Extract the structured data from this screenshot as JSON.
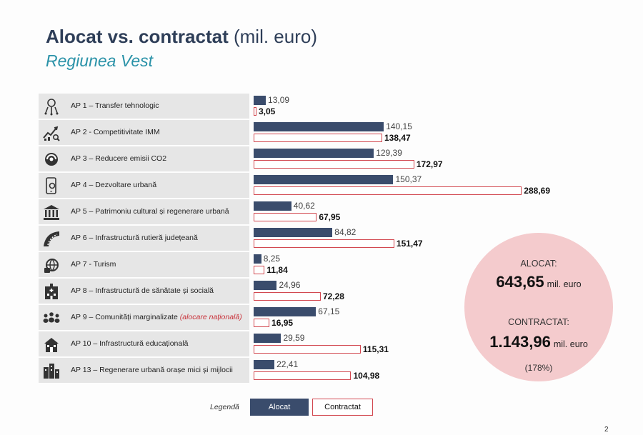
{
  "header": {
    "title_bold": "Alocat vs. contractat",
    "title_unit": "(mil. euro)",
    "subtitle": "Regiunea Vest"
  },
  "chart_data": {
    "type": "bar",
    "orientation": "horizontal",
    "categories": [
      "AP 1 – Transfer tehnologic",
      "AP 2 - Competitivitate IMM",
      "AP 3 – Reducere emisii CO2",
      "AP 4 – Dezvoltare urbană",
      "AP 5 – Patrimoniu cultural și regenerare urbană",
      "AP 6 – Infrastructură rutieră județeană",
      "AP 7 - Turism",
      "AP 8 – Infrastructură de sănătate și socială",
      "AP 9 – Comunități marginalizate",
      "AP 10 – Infrastructură educațională",
      "AP 13 – Regenerare urbană orașe mici și mijlocii"
    ],
    "category_notes": [
      "",
      "",
      "",
      "",
      "",
      "",
      "",
      "",
      "(alocare națională)",
      "",
      ""
    ],
    "series": [
      {
        "name": "Alocat",
        "color": "#3a4c6c",
        "values": [
          13.09,
          140.15,
          129.39,
          150.37,
          40.62,
          84.82,
          8.25,
          24.96,
          67.15,
          29.59,
          22.41
        ],
        "labels": [
          "13,09",
          "140,15",
          "129,39",
          "150,37",
          "40,62",
          "84,82",
          "8,25",
          "24,96",
          "67,15",
          "29,59",
          "22,41"
        ]
      },
      {
        "name": "Contractat",
        "color": "#d24850",
        "values": [
          3.05,
          138.47,
          172.97,
          288.69,
          67.95,
          151.47,
          11.84,
          72.28,
          16.95,
          115.31,
          104.98
        ],
        "labels": [
          "3,05",
          "138,47",
          "172,97",
          "288,69",
          "67,95",
          "151,47",
          "11,84",
          "72,28",
          "16,95",
          "115,31",
          "104,98"
        ]
      }
    ],
    "icons": [
      "tech-transfer-icon",
      "growth-chart-icon",
      "co2-reduction-icon",
      "smart-device-icon",
      "heritage-building-icon",
      "road-infrastructure-icon",
      "tourism-icon",
      "hospital-icon",
      "community-icon",
      "school-icon",
      "urban-town-icon"
    ],
    "grid": false,
    "legend_position": "bottom-center"
  },
  "summary": {
    "allocated_label": "ALOCAT:",
    "allocated_value": "643,65",
    "allocated_unit": "mil. euro",
    "contracted_label": "CONTRACTAT:",
    "contracted_value": "1.143,96",
    "contracted_unit": "mil. euro",
    "percentage": "(178%)"
  },
  "legend": {
    "title": "Legendă",
    "allocated": "Alocat",
    "contracted": "Contractat"
  },
  "footer": {
    "page_number": "2"
  }
}
